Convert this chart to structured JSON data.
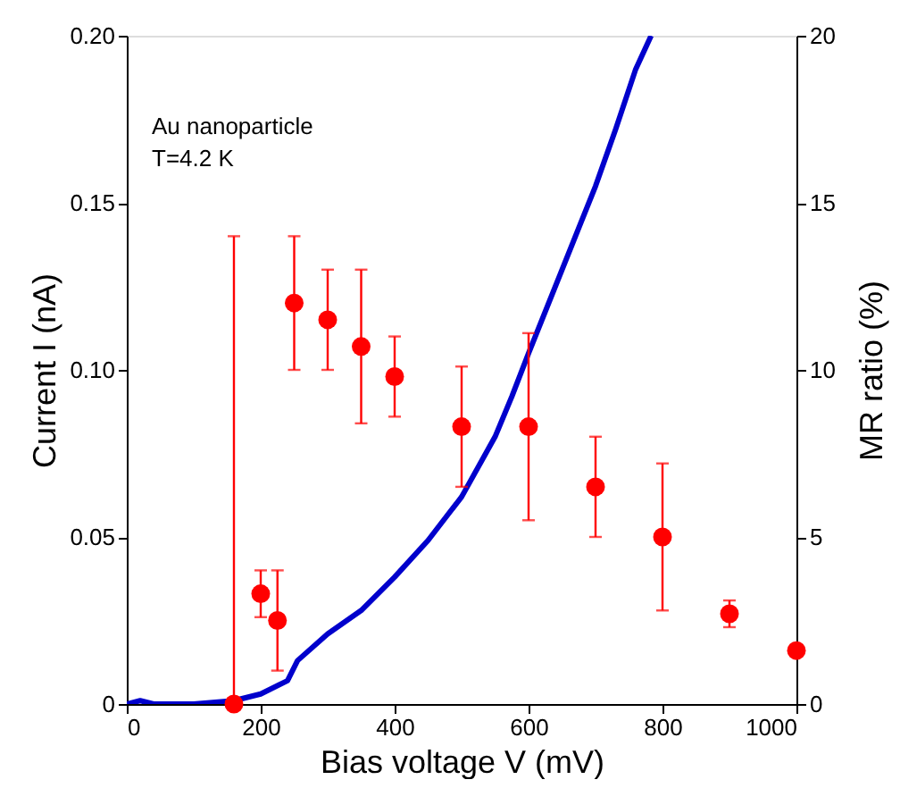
{
  "chart_data": {
    "type": "line",
    "xlabel": "Bias voltage V (mV)",
    "ylabel": "Current I (nA)",
    "y2label": "MR ratio (%)",
    "annotations": [
      "Au nanoparticle",
      "T=4.2 K"
    ],
    "xlim": [
      0,
      1000
    ],
    "xticks": [
      0,
      200,
      400,
      600,
      800,
      1000
    ],
    "ylim": [
      0,
      0.2
    ],
    "yticks": [
      0,
      0.05,
      {
        "value": 0.1,
        "label": "0.10"
      },
      0.15,
      {
        "value": 0.2,
        "label": "0.20"
      }
    ],
    "y2lim": [
      0,
      20
    ],
    "y2ticks": [
      0,
      5,
      10,
      15,
      20
    ],
    "grid": false,
    "series": [
      {
        "color": "#0000cc",
        "marker": "none",
        "line_style": "solid",
        "x": [
          0,
          20,
          40,
          100,
          160,
          200,
          240,
          255,
          300,
          350,
          400,
          450,
          500,
          550,
          575,
          600,
          650,
          700,
          730,
          760,
          783
        ],
        "values": [
          0,
          0.001,
          0,
          0,
          0.001,
          0.003,
          0.007,
          0.013,
          0.021,
          0.028,
          0.038,
          0.049,
          0.062,
          0.08,
          0.092,
          0.105,
          0.13,
          0.155,
          0.172,
          0.19,
          0.2
        ]
      },
      {
        "type": "scatter",
        "axis": "y2",
        "color": "#ff0000",
        "marker": "circle",
        "x": [
          160,
          200,
          225,
          250,
          300,
          350,
          400,
          500,
          600,
          700,
          800,
          900,
          1000
        ],
        "values": [
          0,
          3.3,
          2.5,
          12.0,
          11.5,
          10.7,
          9.8,
          8.3,
          8.3,
          6.5,
          5.0,
          2.7,
          1.6
        ],
        "errors": [
          [
            0,
            14
          ],
          [
            2.6,
            4.0
          ],
          [
            1.0,
            4.0
          ],
          [
            10,
            14
          ],
          [
            10,
            13
          ],
          [
            8.4,
            13
          ],
          [
            8.6,
            11
          ],
          [
            6.5,
            10.1
          ],
          [
            5.5,
            11.1
          ],
          [
            5,
            8
          ],
          [
            2.8,
            7.2
          ],
          [
            2.3,
            3.1
          ],
          null
        ]
      }
    ]
  }
}
